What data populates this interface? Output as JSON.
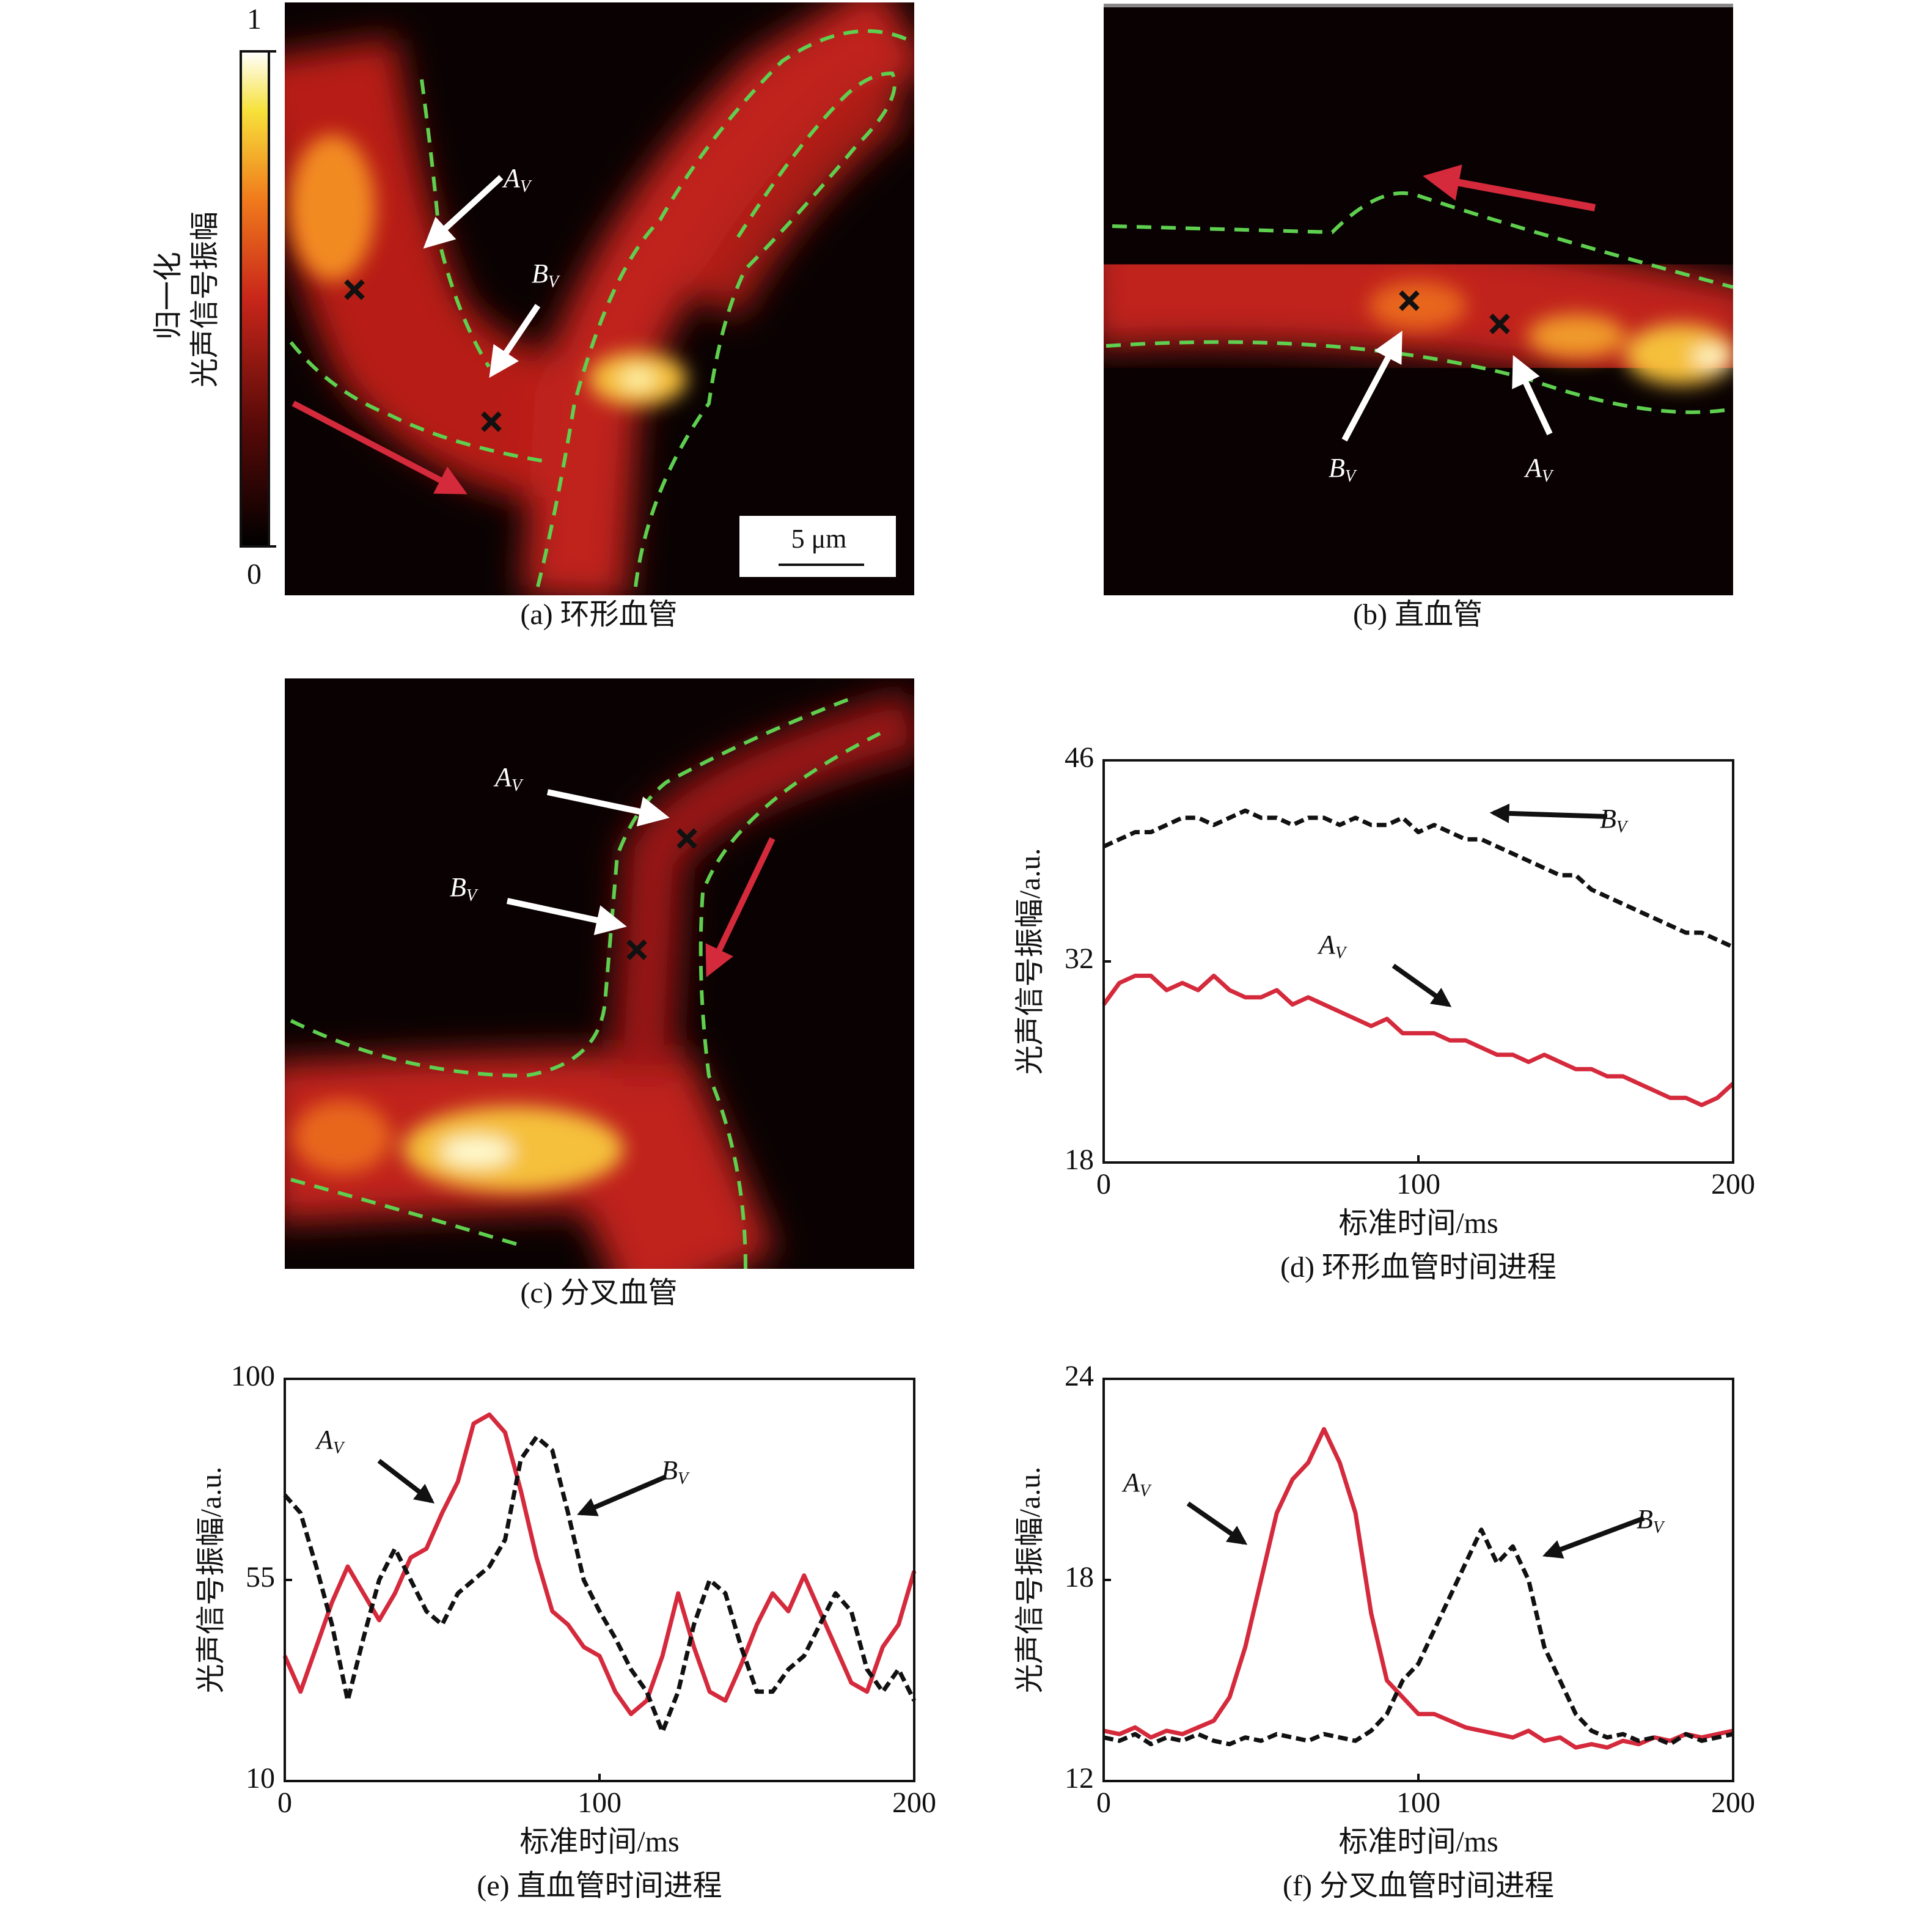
{
  "colorbar": {
    "title": [
      "归一化",
      "光声信号振幅"
    ],
    "ticks": [
      0,
      1
    ]
  },
  "image_panels": [
    {
      "caption": "(a) 环形血管",
      "labels": [
        {
          "text": "A",
          "sub": "V"
        },
        {
          "text": "B",
          "sub": "V"
        }
      ],
      "scale_bar": "5 μm"
    },
    {
      "caption": "(b) 直血管",
      "labels": [
        {
          "text": "B",
          "sub": "V"
        },
        {
          "text": "A",
          "sub": "V"
        }
      ]
    },
    {
      "caption": "(c) 分叉血管",
      "labels": [
        {
          "text": "A",
          "sub": "V"
        },
        {
          "text": "B",
          "sub": "V"
        }
      ]
    }
  ],
  "chart_data": [
    {
      "type": "line",
      "caption": "(d) 环形血管时间进程",
      "x_label": "标准时间/ms",
      "y_label": "光声信号振幅/a.u.",
      "xlim": [
        0,
        200
      ],
      "xticks": [
        0,
        100,
        200
      ],
      "ylim": [
        18,
        46
      ],
      "yticks": [
        18,
        32,
        46
      ],
      "x": [
        0,
        5,
        10,
        15,
        20,
        25,
        30,
        35,
        40,
        45,
        50,
        55,
        60,
        65,
        70,
        75,
        80,
        85,
        90,
        95,
        100,
        105,
        110,
        115,
        120,
        125,
        130,
        135,
        140,
        145,
        150,
        155,
        160,
        165,
        170,
        175,
        180,
        185,
        190,
        195,
        200
      ],
      "series": [
        {
          "label": {
            "text": "B",
            "sub": "V"
          },
          "color": "#111111",
          "dashed": true,
          "values": [
            40,
            40.5,
            41,
            41,
            41.5,
            42,
            42,
            41.5,
            42,
            42.5,
            42,
            42,
            41.5,
            42,
            42,
            41.5,
            42,
            41.5,
            41.5,
            42,
            41,
            41.5,
            41,
            40.5,
            40.5,
            40,
            39.5,
            39,
            38.5,
            38,
            38,
            37,
            36.5,
            36,
            35.5,
            35,
            34.5,
            34,
            34,
            33.5,
            33
          ]
        },
        {
          "label": {
            "text": "A",
            "sub": "V"
          },
          "color": "#d42a3c",
          "dashed": false,
          "values": [
            29,
            30.5,
            31,
            31,
            30,
            30.5,
            30,
            31,
            30,
            29.5,
            29.5,
            30,
            29,
            29.5,
            29,
            28.5,
            28,
            27.5,
            28,
            27,
            27,
            27,
            26.5,
            26.5,
            26,
            25.5,
            25.5,
            25,
            25.5,
            25,
            24.5,
            24.5,
            24,
            24,
            23.5,
            23,
            22.5,
            22.5,
            22,
            22.5,
            23.5
          ]
        }
      ]
    },
    {
      "type": "line",
      "caption": "(e) 直血管时间进程",
      "x_label": "标准时间/ms",
      "y_label": "光声信号振幅/a.u.",
      "xlim": [
        0,
        200
      ],
      "xticks": [
        0,
        100,
        200
      ],
      "ylim": [
        10,
        100
      ],
      "yticks": [
        10,
        55,
        100
      ],
      "x": [
        0,
        5,
        10,
        15,
        20,
        25,
        30,
        35,
        40,
        45,
        50,
        55,
        60,
        65,
        70,
        75,
        80,
        85,
        90,
        95,
        100,
        105,
        110,
        115,
        120,
        125,
        130,
        135,
        140,
        145,
        150,
        155,
        160,
        165,
        170,
        175,
        180,
        185,
        190,
        195,
        200
      ],
      "series": [
        {
          "label": {
            "text": "A",
            "sub": "V"
          },
          "color": "#d42a3c",
          "dashed": false,
          "values": [
            38,
            30,
            40,
            50,
            58,
            52,
            46,
            52,
            60,
            62,
            70,
            77,
            90,
            92,
            88,
            75,
            60,
            48,
            45,
            40,
            38,
            30,
            25,
            28,
            38,
            52,
            40,
            30,
            28,
            36,
            45,
            52,
            48,
            56,
            48,
            40,
            32,
            30,
            40,
            45,
            57
          ]
        },
        {
          "label": {
            "text": "B",
            "sub": "V"
          },
          "color": "#111111",
          "dashed": true,
          "values": [
            74,
            70,
            58,
            45,
            28,
            42,
            55,
            62,
            55,
            48,
            45,
            52,
            55,
            58,
            64,
            82,
            87,
            84,
            70,
            55,
            48,
            42,
            35,
            30,
            21,
            30,
            45,
            55,
            52,
            40,
            30,
            30,
            35,
            38,
            45,
            52,
            48,
            35,
            30,
            35,
            28
          ]
        }
      ]
    },
    {
      "type": "line",
      "caption": "(f) 分叉血管时间进程",
      "x_label": "标准时间/ms",
      "y_label": "光声信号振幅/a.u.",
      "xlim": [
        0,
        200
      ],
      "xticks": [
        0,
        100,
        200
      ],
      "ylim": [
        12,
        24
      ],
      "yticks": [
        12,
        18,
        24
      ],
      "x": [
        0,
        5,
        10,
        15,
        20,
        25,
        30,
        35,
        40,
        45,
        50,
        55,
        60,
        65,
        70,
        75,
        80,
        85,
        90,
        95,
        100,
        105,
        110,
        115,
        120,
        125,
        130,
        135,
        140,
        145,
        150,
        155,
        160,
        165,
        170,
        175,
        180,
        185,
        190,
        195,
        200
      ],
      "series": [
        {
          "label": {
            "text": "A",
            "sub": "V"
          },
          "color": "#d42a3c",
          "dashed": false,
          "values": [
            13.5,
            13.4,
            13.6,
            13.3,
            13.5,
            13.4,
            13.6,
            13.8,
            14.5,
            16,
            18,
            20,
            21,
            21.5,
            22.5,
            21.5,
            20,
            17,
            15,
            14.5,
            14,
            14,
            13.8,
            13.6,
            13.5,
            13.4,
            13.3,
            13.5,
            13.2,
            13.3,
            13,
            13.1,
            13,
            13.2,
            13.1,
            13.3,
            13.2,
            13.4,
            13.3,
            13.4,
            13.5
          ]
        },
        {
          "label": {
            "text": "B",
            "sub": "V"
          },
          "color": "#111111",
          "dashed": true,
          "values": [
            13.3,
            13.2,
            13.4,
            13.1,
            13.3,
            13.2,
            13.4,
            13.2,
            13.1,
            13.3,
            13.2,
            13.4,
            13.3,
            13.2,
            13.4,
            13.3,
            13.2,
            13.5,
            14,
            15,
            15.5,
            16.5,
            17.5,
            18.5,
            19.5,
            18.5,
            19,
            18,
            16,
            15,
            14,
            13.5,
            13.3,
            13.4,
            13.2,
            13.3,
            13.1,
            13.4,
            13.2,
            13.3,
            13.4
          ]
        }
      ]
    }
  ]
}
